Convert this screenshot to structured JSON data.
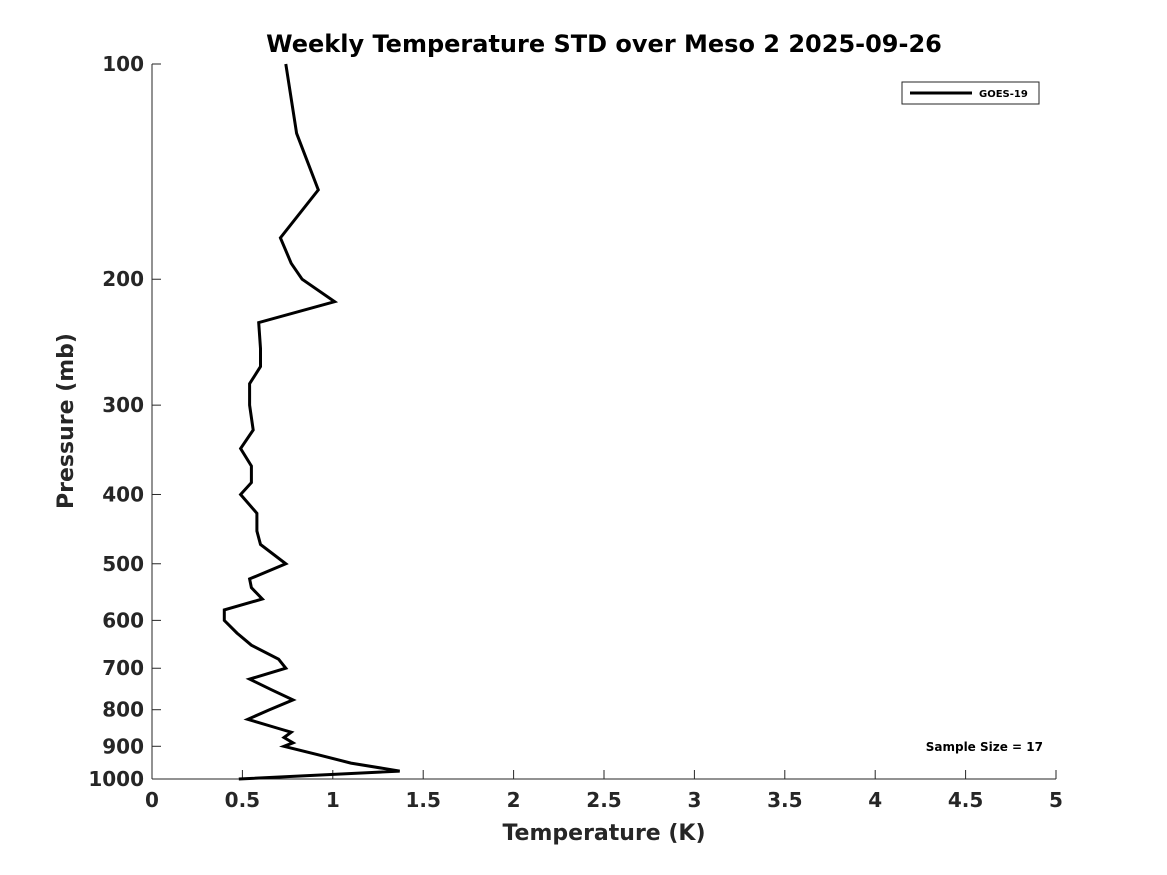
{
  "chart_data": {
    "type": "line",
    "title": "Weekly Temperature STD over Meso 2 2025-09-26",
    "xlabel": "Temperature (K)",
    "ylabel": "Pressure (mb)",
    "xlim": [
      0,
      5
    ],
    "ylim": [
      100,
      1000
    ],
    "y_scale": "log",
    "y_reversed": true,
    "x_ticks": [
      "0",
      "0.5",
      "1",
      "1.5",
      "2",
      "2.5",
      "3",
      "3.5",
      "4",
      "4.5",
      "5"
    ],
    "y_ticks": [
      "100",
      "200",
      "300",
      "400",
      "500",
      "600",
      "700",
      "800",
      "900",
      "1000"
    ],
    "grid": false,
    "legend_position": "top-right",
    "annotation": "Sample Size = 17",
    "series": [
      {
        "name": "GOES-19",
        "color": "#000000",
        "points": [
          [
            0.74,
            100
          ],
          [
            0.8,
            125
          ],
          [
            0.92,
            150
          ],
          [
            0.71,
            175
          ],
          [
            0.77,
            190
          ],
          [
            0.83,
            200
          ],
          [
            1.01,
            215
          ],
          [
            0.59,
            230
          ],
          [
            0.6,
            250
          ],
          [
            0.6,
            265
          ],
          [
            0.54,
            280
          ],
          [
            0.54,
            300
          ],
          [
            0.56,
            325
          ],
          [
            0.49,
            345
          ],
          [
            0.55,
            365
          ],
          [
            0.55,
            385
          ],
          [
            0.49,
            400
          ],
          [
            0.58,
            425
          ],
          [
            0.58,
            450
          ],
          [
            0.6,
            470
          ],
          [
            0.74,
            500
          ],
          [
            0.54,
            525
          ],
          [
            0.55,
            540
          ],
          [
            0.61,
            560
          ],
          [
            0.4,
            580
          ],
          [
            0.4,
            600
          ],
          [
            0.47,
            625
          ],
          [
            0.55,
            650
          ],
          [
            0.7,
            680
          ],
          [
            0.74,
            700
          ],
          [
            0.54,
            725
          ],
          [
            0.66,
            750
          ],
          [
            0.78,
            775
          ],
          [
            0.65,
            800
          ],
          [
            0.53,
            825
          ],
          [
            0.7,
            850
          ],
          [
            0.77,
            860
          ],
          [
            0.73,
            875
          ],
          [
            0.78,
            890
          ],
          [
            0.73,
            900
          ],
          [
            0.92,
            925
          ],
          [
            1.1,
            950
          ],
          [
            1.37,
            975
          ],
          [
            0.48,
            1000
          ]
        ]
      }
    ]
  }
}
